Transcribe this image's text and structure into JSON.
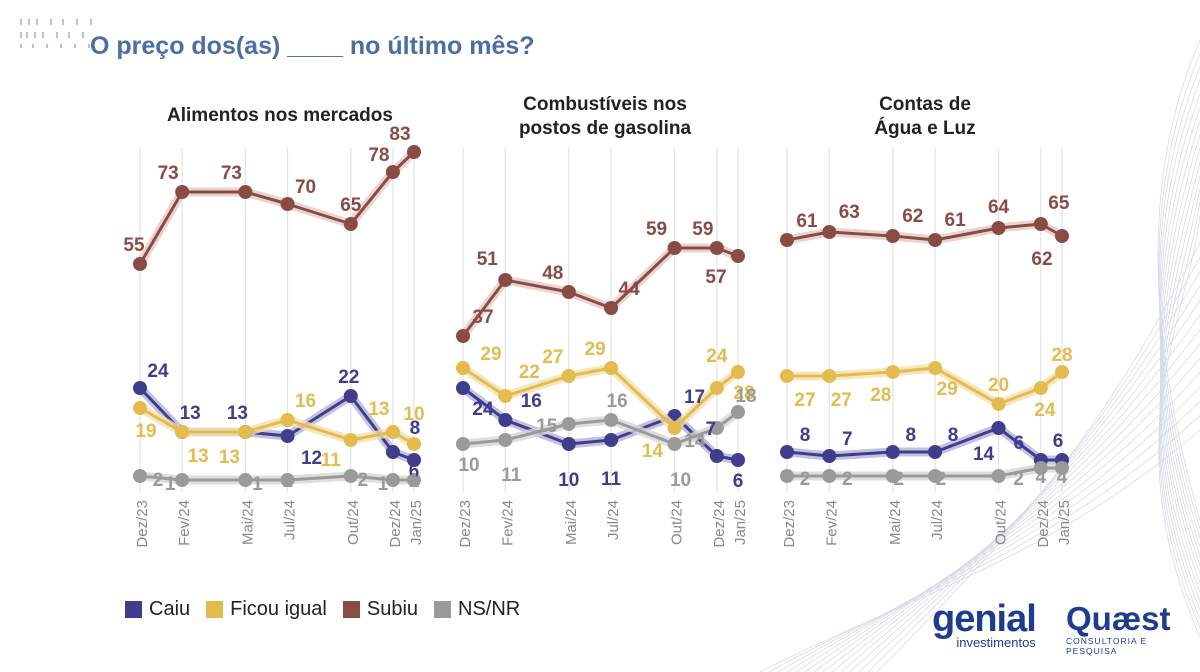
{
  "header": {
    "title": "O preço dos(as) ____ no último mês?"
  },
  "legend": [
    {
      "label": "Caiu",
      "color": "#3f3d8c"
    },
    {
      "label": "Ficou igual",
      "color": "#e3bb4f"
    },
    {
      "label": "Subiu",
      "color": "#8b4b45"
    },
    {
      "label": "NS/NR",
      "color": "#9a9a9a"
    }
  ],
  "logos": {
    "genial_main": "genial",
    "genial_sub": "investimentos",
    "quaest_main": "Quæst",
    "quaest_sub": "CONSULTORIA E PESQUISA"
  },
  "chart_data": [
    {
      "type": "line",
      "title_lines": [
        "Alimentos nos mercados"
      ],
      "x": [
        "Dez/23",
        "Fev/24",
        "Mai/24",
        "Jul/24",
        "Out/24",
        "Dez/24",
        "Jan/25"
      ],
      "ylim": [
        0,
        100
      ],
      "series": [
        {
          "name": "Subiu",
          "values": [
            55,
            73,
            73,
            70,
            65,
            78,
            83
          ]
        },
        {
          "name": "Caiu",
          "values": [
            24,
            13,
            13,
            12,
            22,
            8,
            6
          ]
        },
        {
          "name": "Ficou igual",
          "values": [
            19,
            13,
            13,
            16,
            11,
            13,
            10
          ]
        },
        {
          "name": "NS/NR",
          "values": [
            2,
            1,
            1,
            1,
            2,
            1,
            1
          ]
        }
      ]
    },
    {
      "type": "line",
      "title_lines": [
        "Combustíveis nos",
        "postos de gasolina"
      ],
      "x": [
        "Dez/23",
        "Fev/24",
        "Mai/24",
        "Jul/24",
        "Out/24",
        "Dez/24",
        "Jan/25"
      ],
      "ylim": [
        0,
        100
      ],
      "series": [
        {
          "name": "Subiu",
          "values": [
            37,
            51,
            48,
            44,
            59,
            59,
            57
          ]
        },
        {
          "name": "Caiu",
          "values": [
            24,
            16,
            10,
            11,
            17,
            7,
            6
          ]
        },
        {
          "name": "Ficou igual",
          "values": [
            29,
            22,
            27,
            29,
            14,
            24,
            28
          ]
        },
        {
          "name": "NS/NR",
          "values": [
            10,
            11,
            15,
            16,
            10,
            14,
            18
          ]
        }
      ]
    },
    {
      "type": "line",
      "title_lines": [
        "Contas de",
        "Água e Luz"
      ],
      "x": [
        "Dez/23",
        "Fev/24",
        "Mai/24",
        "Jul/24",
        "Out/24",
        "Dez/24",
        "Jan/25"
      ],
      "ylim": [
        0,
        100
      ],
      "series": [
        {
          "name": "Subiu",
          "values": [
            61,
            63,
            62,
            61,
            64,
            65,
            62
          ]
        },
        {
          "name": "Caiu",
          "values": [
            8,
            7,
            8,
            8,
            14,
            6,
            6
          ]
        },
        {
          "name": "Ficou igual",
          "values": [
            27,
            27,
            28,
            29,
            20,
            24,
            28
          ]
        },
        {
          "name": "NS/NR",
          "values": [
            2,
            2,
            2,
            2,
            2,
            4,
            4
          ]
        }
      ]
    }
  ]
}
